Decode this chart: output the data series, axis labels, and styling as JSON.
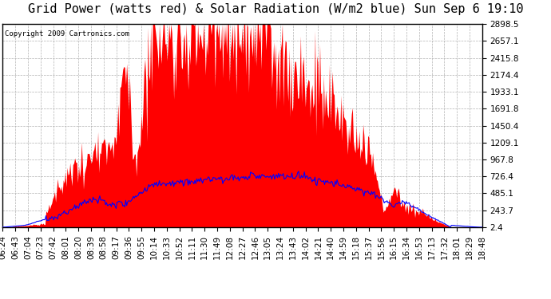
{
  "title": "Grid Power (watts red) & Solar Radiation (W/m2 blue) Sun Sep 6 19:10",
  "copyright": "Copyright 2009 Cartronics.com",
  "background_color": "#ffffff",
  "plot_bg_color": "#ffffff",
  "grid_color": "#aaaaaa",
  "ymin": 2.4,
  "ymax": 2898.5,
  "yticks": [
    2.4,
    243.7,
    485.1,
    726.4,
    967.8,
    1209.1,
    1450.4,
    1691.8,
    1933.1,
    2174.4,
    2415.8,
    2657.1,
    2898.5
  ],
  "x_labels": [
    "06:24",
    "06:43",
    "07:04",
    "07:23",
    "07:42",
    "08:01",
    "08:20",
    "08:39",
    "08:58",
    "09:17",
    "09:36",
    "09:55",
    "10:14",
    "10:33",
    "10:52",
    "11:11",
    "11:30",
    "11:49",
    "12:08",
    "12:27",
    "12:46",
    "13:05",
    "13:24",
    "13:43",
    "14:02",
    "14:21",
    "14:40",
    "14:59",
    "15:18",
    "15:37",
    "15:56",
    "16:15",
    "16:34",
    "16:53",
    "17:13",
    "17:32",
    "18:01",
    "18:29",
    "18:48"
  ],
  "red_fill_color": "#ff0000",
  "blue_line_color": "#0000ff",
  "title_fontsize": 11,
  "tick_fontsize": 7.5,
  "copyright_fontsize": 6.5
}
